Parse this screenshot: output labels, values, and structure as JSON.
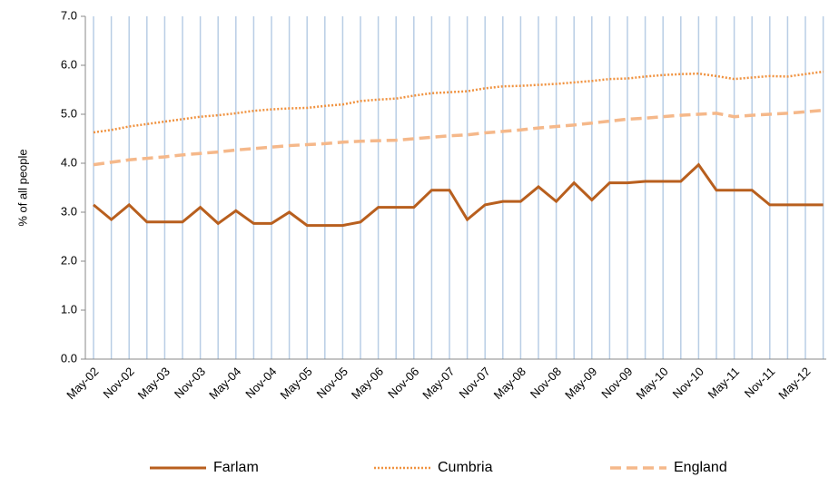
{
  "chart_data": {
    "type": "line",
    "y_label": "% of all people",
    "categories": [
      "May-02",
      null,
      "Nov-02",
      null,
      "May-03",
      null,
      "Nov-03",
      null,
      "May-04",
      null,
      "Nov-04",
      null,
      "May-05",
      null,
      "Nov-05",
      null,
      "May-06",
      null,
      "Nov-06",
      null,
      "May-07",
      null,
      "Nov-07",
      null,
      "May-08",
      null,
      "Nov-08",
      null,
      "May-09",
      null,
      "Nov-09",
      null,
      "May-10",
      null,
      "Nov-10",
      null,
      "May-11",
      null,
      "Nov-11",
      null,
      "May-12",
      null
    ],
    "series": [
      {
        "name": "Farlam",
        "color": "#b85f1e",
        "style": "solid",
        "values": [
          3.15,
          2.85,
          3.15,
          2.8,
          2.8,
          2.8,
          3.1,
          2.77,
          3.03,
          2.77,
          2.77,
          3.0,
          2.73,
          2.73,
          2.73,
          2.8,
          3.1,
          3.1,
          3.1,
          3.45,
          3.45,
          2.85,
          3.15,
          3.22,
          3.22,
          3.52,
          3.22,
          3.6,
          3.25,
          3.6,
          3.6,
          3.63,
          3.63,
          3.63,
          3.97,
          3.45,
          3.45,
          3.45,
          3.15,
          3.15,
          3.15,
          3.15
        ]
      },
      {
        "name": "Cumbria",
        "color": "#f0923f",
        "style": "dotted",
        "values": [
          4.63,
          4.68,
          4.75,
          4.8,
          4.85,
          4.9,
          4.95,
          4.98,
          5.02,
          5.07,
          5.1,
          5.12,
          5.13,
          5.17,
          5.2,
          5.27,
          5.3,
          5.32,
          5.38,
          5.43,
          5.45,
          5.47,
          5.53,
          5.57,
          5.58,
          5.6,
          5.62,
          5.65,
          5.68,
          5.72,
          5.73,
          5.77,
          5.8,
          5.82,
          5.83,
          5.78,
          5.72,
          5.75,
          5.78,
          5.77,
          5.82,
          5.87
        ]
      },
      {
        "name": "England",
        "color": "#f5b88a",
        "style": "dashed",
        "values": [
          3.97,
          4.02,
          4.07,
          4.1,
          4.13,
          4.17,
          4.2,
          4.23,
          4.27,
          4.3,
          4.33,
          4.36,
          4.38,
          4.4,
          4.43,
          4.45,
          4.46,
          4.47,
          4.5,
          4.53,
          4.56,
          4.58,
          4.62,
          4.65,
          4.68,
          4.72,
          4.75,
          4.78,
          4.82,
          4.86,
          4.9,
          4.92,
          4.95,
          4.98,
          5.0,
          5.02,
          4.95,
          4.98,
          5.0,
          5.02,
          5.05,
          5.08
        ]
      }
    ],
    "ylim": [
      0,
      7
    ],
    "yticks": [
      {
        "value": 0,
        "label": "0.0"
      },
      {
        "value": 1,
        "label": "1.0"
      },
      {
        "value": 2,
        "label": "2.0"
      },
      {
        "value": 3,
        "label": "3.0"
      },
      {
        "value": 4,
        "label": "4.0"
      },
      {
        "value": 5,
        "label": "5.0"
      },
      {
        "value": 6,
        "label": "6.0"
      },
      {
        "value": 7,
        "label": "7.0"
      }
    ],
    "grid": "x",
    "grid_color": "#b9cde5",
    "legend": "bottom"
  }
}
